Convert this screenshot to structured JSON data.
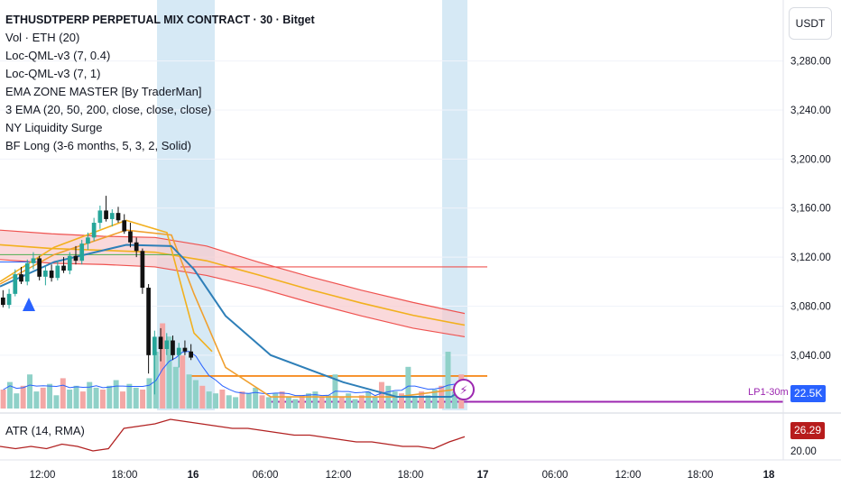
{
  "header": {
    "title": "ETHUSDTPERP PERPETUAL MIX CONTRACT · 30 · Bitget",
    "currency_button": "USDT"
  },
  "indicators": [
    "Vol · ETH (20)",
    "Loc-QML-v3 (7, 0.4)",
    "Loc-QML-v3 (7, 1)",
    "EMA ZONE MASTER [By TraderMan]",
    "3 EMA (20, 50, 200, close, close, close)",
    "NY Liquidity Surge",
    "BF Long (3-6 months, 5, 3, 2, Solid)"
  ],
  "atr": {
    "label": "ATR (14, RMA)",
    "last_value": "26.29",
    "axis_tick": "20.00"
  },
  "labels": {
    "lp_label": "LP1-30m",
    "volume_badge": "22.5K"
  },
  "colors": {
    "up": "#26a69a",
    "down": "#ef5350",
    "ema_fast": "#f2b01e",
    "ema_mid": "#f0a030",
    "ema_slow": "#2e7fb8",
    "zone": "#f8c9cc",
    "session_shade": "#d6e9f5",
    "purple": "#9c27b0",
    "atr_line": "#b22222",
    "volume_ma": "#2962ff",
    "badge_blue": "#2962ff",
    "badge_red": "#b71c1c"
  },
  "chart_data": [
    {
      "type": "candlestick",
      "title": "ETHUSDTPERP PERPETUAL MIX CONTRACT · 30 · Bitget",
      "y_axis_ticks": [
        "3,280.00",
        "3,240.00",
        "3,200.00",
        "3,160.00",
        "3,120.00",
        "3,080.00",
        "3,040.00"
      ],
      "x_axis_ticks": [
        "12:00",
        "18:00",
        "16",
        "06:00",
        "12:00",
        "18:00",
        "17",
        "06:00",
        "12:00",
        "18:00",
        "18"
      ],
      "ylim": [
        2995,
        3315
      ],
      "x_index_range": [
        0,
        148
      ],
      "candles": [
        [
          3087,
          3093,
          3079,
          3081
        ],
        [
          3081,
          3094,
          3078,
          3090
        ],
        [
          3090,
          3110,
          3088,
          3106
        ],
        [
          3106,
          3112,
          3098,
          3100
        ],
        [
          3100,
          3118,
          3097,
          3115
        ],
        [
          3115,
          3124,
          3110,
          3119
        ],
        [
          3119,
          3121,
          3101,
          3104
        ],
        [
          3104,
          3112,
          3097,
          3109
        ],
        [
          3109,
          3114,
          3100,
          3103
        ],
        [
          3103,
          3117,
          3101,
          3113
        ],
        [
          3113,
          3120,
          3107,
          3109
        ],
        [
          3109,
          3124,
          3106,
          3121
        ],
        [
          3121,
          3129,
          3114,
          3117
        ],
        [
          3117,
          3134,
          3114,
          3131
        ],
        [
          3131,
          3140,
          3126,
          3136
        ],
        [
          3136,
          3152,
          3133,
          3148
        ],
        [
          3148,
          3162,
          3143,
          3158
        ],
        [
          3158,
          3170,
          3149,
          3151
        ],
        [
          3151,
          3159,
          3145,
          3156
        ],
        [
          3156,
          3161,
          3148,
          3150
        ],
        [
          3150,
          3155,
          3139,
          3141
        ],
        [
          3141,
          3148,
          3128,
          3132
        ],
        [
          3132,
          3136,
          3120,
          3125
        ],
        [
          3125,
          3127,
          3090,
          3095
        ],
        [
          3095,
          3098,
          3025,
          3040
        ],
        [
          3040,
          3060,
          3008,
          3055
        ],
        [
          3055,
          3062,
          3035,
          3045
        ],
        [
          3045,
          3058,
          3040,
          3052
        ],
        [
          3052,
          3056,
          3036,
          3040
        ],
        [
          3040,
          3050,
          3030,
          3046
        ],
        [
          3046,
          3052,
          3040,
          3043
        ],
        [
          3043,
          3049,
          3036,
          3038
        ]
      ],
      "ema_series": [
        {
          "name": "EMA 20",
          "values": [
            3100,
            3128,
            3150,
            3140,
            3058,
            3043
          ]
        },
        {
          "name": "EMA 50",
          "values": [
            3098,
            3122,
            3142,
            3138,
            3090,
            3030,
            3006,
            3006,
            3013
          ]
        },
        {
          "name": "EMA 200",
          "values": [
            3096,
            3116,
            3130,
            3129,
            3110,
            3072,
            3040,
            3018,
            3006,
            3006,
            3013
          ]
        }
      ],
      "ema_zone": {
        "upper": [
          3142,
          3139,
          3137,
          3136,
          3129,
          3116,
          3104,
          3093,
          3083,
          3074
        ],
        "lower": [
          3118,
          3115,
          3114,
          3112,
          3105,
          3095,
          3083,
          3072,
          3062,
          3055
        ]
      },
      "horizontal_levels": [
        {
          "value": 3112,
          "color": "#ef5350"
        },
        {
          "value": 3023,
          "color": "#f57c00"
        },
        {
          "value": 3002,
          "color": "#9c27b0",
          "label": "LP1-30m"
        }
      ]
    },
    {
      "type": "bar",
      "series": [
        {
          "name": "Vol · ETH (20)",
          "values": [
            10,
            14,
            8,
            12,
            18,
            9,
            11,
            13,
            7,
            16,
            10,
            12,
            9,
            14,
            11,
            10,
            12,
            15,
            9,
            13,
            11,
            10,
            16,
            30,
            45,
            38,
            22,
            28,
            18,
            15,
            12,
            9,
            8,
            10,
            7,
            6,
            9,
            8,
            11,
            7,
            6,
            8,
            9,
            6,
            5,
            7,
            8,
            9,
            6,
            7,
            18,
            6,
            8,
            5,
            7,
            9,
            6,
            14,
            12,
            9,
            8,
            22,
            6,
            9,
            7,
            10,
            12,
            30,
            9,
            18
          ]
        }
      ],
      "last_value": "22.5K"
    },
    {
      "type": "line",
      "series": [
        {
          "name": "ATR (14, RMA)",
          "values": [
            22,
            21,
            22,
            21,
            23,
            22,
            20,
            21,
            30,
            31,
            32,
            34,
            33,
            32,
            31,
            30,
            30,
            29,
            28,
            27,
            27,
            26,
            25,
            24,
            24,
            23,
            22,
            22,
            21,
            24,
            26.29
          ]
        }
      ],
      "last_value": "26.29",
      "y_axis_ticks": [
        "20.00"
      ]
    }
  ]
}
